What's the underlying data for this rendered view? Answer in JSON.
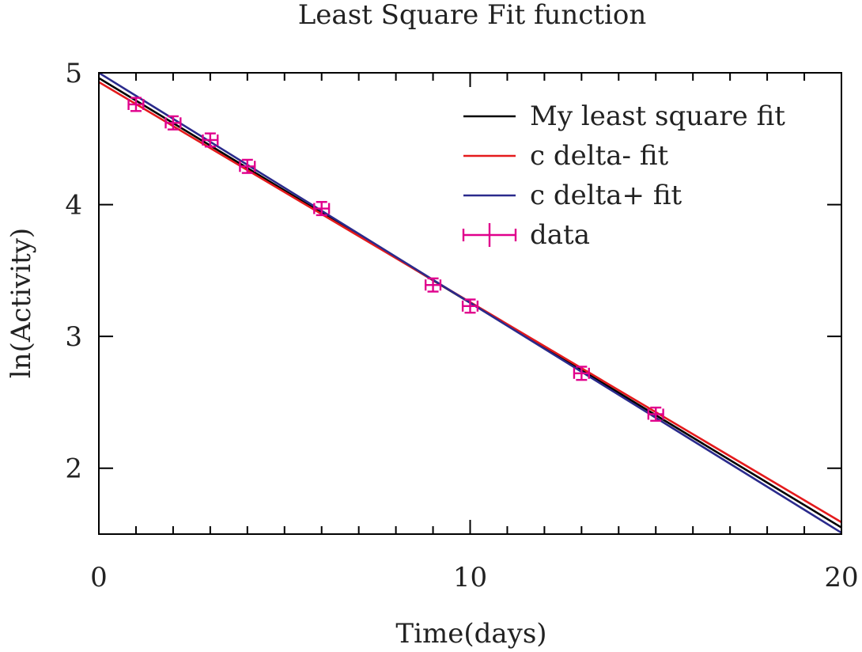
{
  "chart_data": {
    "type": "line",
    "title": "Least Square Fit function",
    "xlabel": "Time(days)",
    "ylabel": "ln(Activity)",
    "xlim": [
      0,
      20
    ],
    "ylim": [
      1.5,
      5
    ],
    "x_ticks": [
      0,
      10,
      20
    ],
    "x_tick_labels": [
      "0",
      "10",
      "20"
    ],
    "x_minor_step": 1,
    "y_ticks": [
      2,
      3,
      4,
      5
    ],
    "y_tick_labels": [
      "2",
      "3",
      "4",
      "5"
    ],
    "grid": false,
    "legend_position": "top-right",
    "series": [
      {
        "name": "My least square fit",
        "kind": "line",
        "color": "#000000",
        "x": [
          0,
          20
        ],
        "y": [
          4.96,
          1.55
        ]
      },
      {
        "name": "c delta- fit",
        "kind": "line",
        "color": "#e41a1c",
        "x": [
          0,
          20
        ],
        "y": [
          4.93,
          1.59
        ]
      },
      {
        "name": "c delta+ fit",
        "kind": "line",
        "color": "#2a2a8c",
        "x": [
          0,
          20
        ],
        "y": [
          5.0,
          1.51
        ]
      },
      {
        "name": "data",
        "kind": "errorbar",
        "color": "#e0008c",
        "x": [
          1,
          2,
          3,
          4,
          6,
          9,
          10,
          13,
          15
        ],
        "y": [
          4.76,
          4.62,
          4.49,
          4.29,
          3.97,
          3.39,
          3.23,
          2.72,
          2.41
        ],
        "yerr": [
          0.05,
          0.05,
          0.05,
          0.05,
          0.05,
          0.05,
          0.05,
          0.05,
          0.05
        ],
        "xerr": [
          0.2,
          0.2,
          0.2,
          0.2,
          0.2,
          0.2,
          0.2,
          0.2,
          0.2
        ]
      }
    ]
  }
}
